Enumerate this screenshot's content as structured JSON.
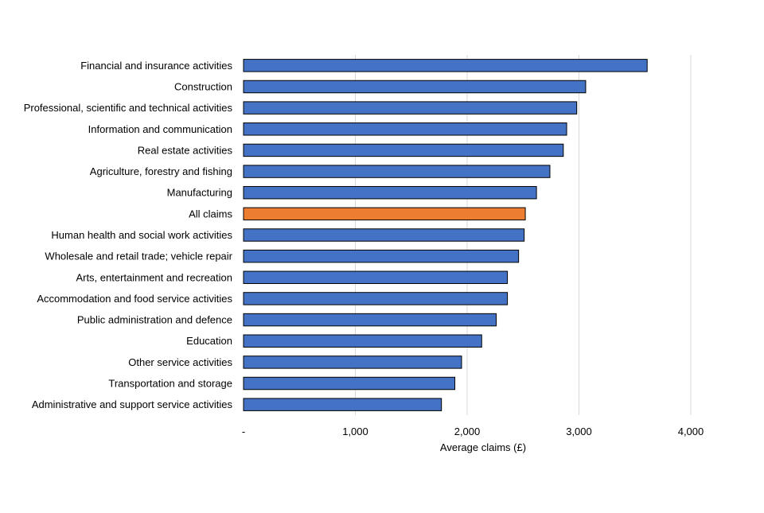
{
  "chart_data": {
    "type": "bar",
    "orientation": "horizontal",
    "title": "",
    "xlabel": "Average claims (£)",
    "ylabel": "",
    "xlim": [
      0,
      4000
    ],
    "xticks": [
      0,
      1000,
      2000,
      3000,
      4000
    ],
    "xtick_labels": [
      "-",
      "1,000",
      "2,000",
      "3,000",
      "4,000"
    ],
    "grid": true,
    "legend": "none",
    "categories": [
      "Financial and insurance activities",
      "Construction",
      "Professional, scientific and technical activities",
      "Information and communication",
      "Real estate activities",
      "Agriculture, forestry and fishing",
      "Manufacturing",
      "All claims",
      "Human health and social work activities",
      "Wholesale and retail trade; vehicle repair",
      "Arts, entertainment and recreation",
      "Accommodation and food service activities",
      "Public administration and defence",
      "Education",
      "Other service activities",
      "Transportation and storage",
      "Administrative and support service activities"
    ],
    "values": [
      3610,
      3060,
      2980,
      2890,
      2860,
      2740,
      2620,
      2520,
      2510,
      2460,
      2360,
      2360,
      2260,
      2130,
      1950,
      1890,
      1770
    ],
    "highlight_category": "All claims",
    "colors": {
      "default_bar": "#4472C4",
      "highlight_bar": "#ED7D31",
      "bar_outline": "#000000",
      "gridline": "#D9D9D9"
    }
  }
}
